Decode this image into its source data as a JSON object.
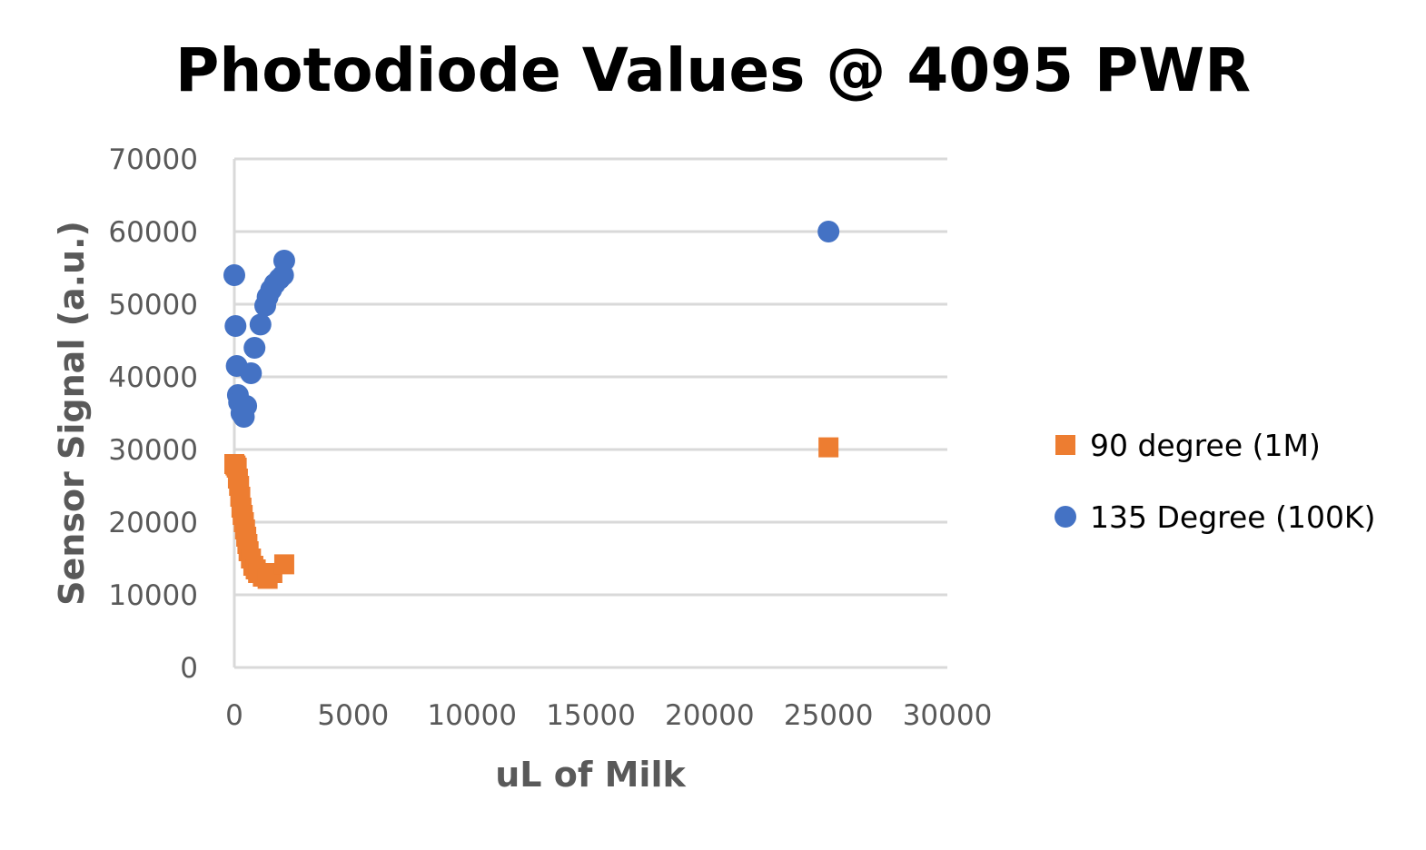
{
  "chart_data": {
    "type": "scatter",
    "title": "Photodiode Values @ 4095 PWR",
    "xlabel": "uL of Milk",
    "ylabel": "Sensor Signal (a.u.)",
    "xlim": [
      0,
      30000
    ],
    "ylim": [
      0,
      70000
    ],
    "x_ticks": [
      0,
      5000,
      10000,
      15000,
      20000,
      25000,
      30000
    ],
    "y_ticks": [
      0,
      10000,
      20000,
      30000,
      40000,
      50000,
      60000,
      70000
    ],
    "x_tick_labels": [
      "0",
      "5000",
      "10000",
      "15000",
      "20000",
      "25000",
      "30000"
    ],
    "y_tick_labels": [
      "0",
      "10000",
      "20000",
      "30000",
      "40000",
      "50000",
      "60000",
      "70000"
    ],
    "grid": "horizontal",
    "legend_position": "right",
    "series": [
      {
        "name": "90 degree (1M)",
        "marker": "square",
        "color": "#ED7D31",
        "points": [
          [
            0,
            28000
          ],
          [
            50,
            27800
          ],
          [
            100,
            27500
          ],
          [
            150,
            26000
          ],
          [
            200,
            25000
          ],
          [
            250,
            23500
          ],
          [
            300,
            22000
          ],
          [
            350,
            21000
          ],
          [
            400,
            20000
          ],
          [
            450,
            19000
          ],
          [
            500,
            18000
          ],
          [
            550,
            17000
          ],
          [
            600,
            16000
          ],
          [
            700,
            15000
          ],
          [
            800,
            14000
          ],
          [
            900,
            13500
          ],
          [
            1000,
            13000
          ],
          [
            1200,
            12500
          ],
          [
            1400,
            12200
          ],
          [
            1600,
            13000
          ],
          [
            2100,
            14200
          ],
          [
            25000,
            30300
          ]
        ]
      },
      {
        "name": "135 Degree (100K)",
        "marker": "circle",
        "color": "#4472C4",
        "points": [
          [
            0,
            54000
          ],
          [
            50,
            47000
          ],
          [
            100,
            41500
          ],
          [
            150,
            37500
          ],
          [
            200,
            36500
          ],
          [
            300,
            35000
          ],
          [
            400,
            34500
          ],
          [
            500,
            36000
          ],
          [
            700,
            40500
          ],
          [
            850,
            44000
          ],
          [
            1100,
            47200
          ],
          [
            1300,
            49800
          ],
          [
            1400,
            51000
          ],
          [
            1550,
            52000
          ],
          [
            1700,
            52800
          ],
          [
            1900,
            53500
          ],
          [
            2050,
            54000
          ],
          [
            2100,
            56000
          ],
          [
            25000,
            60000
          ]
        ]
      }
    ]
  }
}
